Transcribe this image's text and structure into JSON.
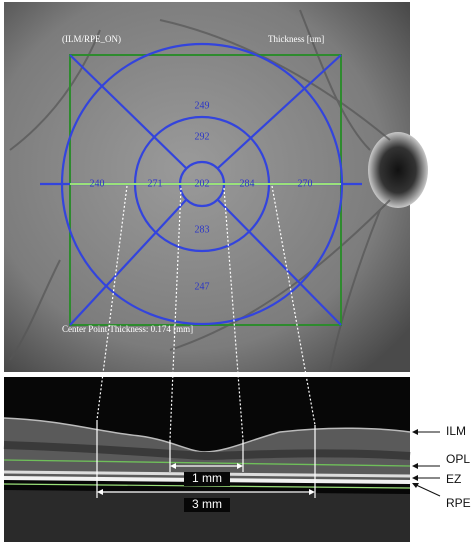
{
  "fundus": {
    "protocol": "(ILM/RPE_ON)",
    "thickness_unit": "Thickness [um]",
    "center_point": "Center Point Thickness: 0.174 [mm]",
    "sectors": {
      "outer_superior": 249,
      "inner_superior": 292,
      "outer_temporal": 240,
      "inner_temporal": 271,
      "center": 202,
      "inner_nasal": 284,
      "outer_nasal": 270,
      "inner_inferior": 283,
      "outer_inferior": 247
    }
  },
  "oct": {
    "scale_inner": "1 mm",
    "scale_outer": "3 mm",
    "layers": [
      "ILM",
      "OPL",
      "EZ",
      "RPE"
    ]
  }
}
